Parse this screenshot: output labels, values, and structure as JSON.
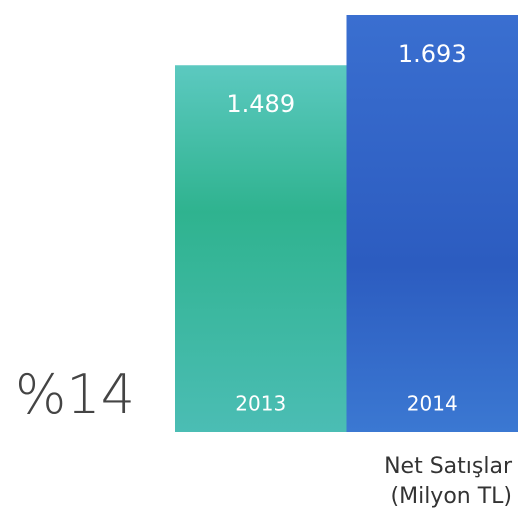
{
  "chart_data": {
    "type": "bar",
    "title": "Net Satışlar",
    "subtitle": "(Milyon TL)",
    "annotation": "%14",
    "categories": [
      "2013",
      "2014"
    ],
    "values": [
      1489,
      1693
    ],
    "value_labels": [
      "1.489",
      "1.693"
    ],
    "colors": [
      "#38b99b",
      "#3063c6"
    ]
  }
}
